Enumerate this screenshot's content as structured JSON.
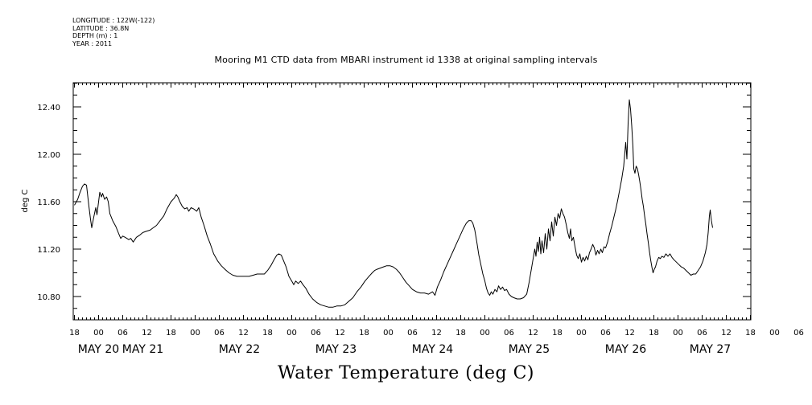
{
  "header": {
    "longitude": "LONGITUDE : 122W(-122)",
    "latitude": "LATITUDE : 36.8N",
    "depth": "DEPTH (m) : 1",
    "year": "YEAR : 2011"
  },
  "chart_data": {
    "type": "line",
    "title": "Mooring M1 CTD data from MBARI instrument id 1338 at original sampling intervals",
    "xlabel": "Water Temperature (deg C)",
    "ylabel": "deg C",
    "x_unit": "hours from MAY 19 18:00",
    "xlim": [
      0,
      168
    ],
    "ylim": [
      10.59,
      12.63
    ],
    "y_ticks": [
      "10.80",
      "11.20",
      "11.60",
      "12.00",
      "12.40"
    ],
    "y_tick_values": [
      10.8,
      11.2,
      11.6,
      12.0,
      12.4
    ],
    "x_hour_ticks": [
      "18",
      "00",
      "06",
      "12",
      "18",
      "00",
      "06",
      "12",
      "18",
      "00",
      "06",
      "12",
      "18",
      "00",
      "06",
      "12",
      "18",
      "00",
      "06",
      "12",
      "18",
      "00",
      "06",
      "12",
      "18",
      "00",
      "06",
      "12",
      "18",
      "00",
      "06",
      "12",
      "18"
    ],
    "x_date_labels": [
      {
        "label": "MAY 20",
        "hour": 6
      },
      {
        "label": "MAY 21",
        "hour": 17
      },
      {
        "label": "MAY 22",
        "hour": 41
      },
      {
        "label": "MAY 23",
        "hour": 65
      },
      {
        "label": "MAY 24",
        "hour": 89
      },
      {
        "label": "MAY 25",
        "hour": 113
      },
      {
        "label": "MAY 26",
        "hour": 137
      },
      {
        "label": "MAY 27",
        "hour": 158
      }
    ],
    "series": [
      {
        "color": "#000000",
        "points": [
          [
            0.0,
            11.57
          ],
          [
            0.8,
            11.62
          ],
          [
            1.4,
            11.68
          ],
          [
            2.0,
            11.73
          ],
          [
            2.5,
            11.75
          ],
          [
            3.0,
            11.74
          ],
          [
            3.6,
            11.56
          ],
          [
            4.0,
            11.45
          ],
          [
            4.3,
            11.38
          ],
          [
            4.8,
            11.47
          ],
          [
            5.3,
            11.55
          ],
          [
            5.6,
            11.49
          ],
          [
            6.0,
            11.6
          ],
          [
            6.3,
            11.68
          ],
          [
            6.7,
            11.64
          ],
          [
            7.0,
            11.67
          ],
          [
            7.5,
            11.62
          ],
          [
            8.0,
            11.64
          ],
          [
            8.4,
            11.6
          ],
          [
            8.8,
            11.5
          ],
          [
            9.5,
            11.44
          ],
          [
            10.3,
            11.39
          ],
          [
            11.0,
            11.33
          ],
          [
            11.5,
            11.29
          ],
          [
            12.0,
            11.31
          ],
          [
            12.6,
            11.3
          ],
          [
            13.5,
            11.28
          ],
          [
            14.0,
            11.29
          ],
          [
            14.6,
            11.26
          ],
          [
            15.4,
            11.3
          ],
          [
            16.3,
            11.32
          ],
          [
            17.0,
            11.34
          ],
          [
            17.8,
            11.35
          ],
          [
            18.8,
            11.36
          ],
          [
            19.6,
            11.38
          ],
          [
            20.4,
            11.4
          ],
          [
            21.3,
            11.44
          ],
          [
            22.2,
            11.48
          ],
          [
            23.0,
            11.54
          ],
          [
            24.0,
            11.6
          ],
          [
            24.8,
            11.63
          ],
          [
            25.3,
            11.66
          ],
          [
            25.7,
            11.64
          ],
          [
            26.2,
            11.6
          ],
          [
            26.8,
            11.56
          ],
          [
            27.4,
            11.54
          ],
          [
            28.0,
            11.55
          ],
          [
            28.4,
            11.52
          ],
          [
            29.0,
            11.55
          ],
          [
            29.6,
            11.54
          ],
          [
            30.4,
            11.52
          ],
          [
            30.9,
            11.55
          ],
          [
            31.5,
            11.47
          ],
          [
            32.2,
            11.4
          ],
          [
            33.0,
            11.31
          ],
          [
            33.8,
            11.24
          ],
          [
            34.6,
            11.16
          ],
          [
            35.6,
            11.1
          ],
          [
            36.5,
            11.06
          ],
          [
            37.4,
            11.03
          ],
          [
            38.4,
            11.0
          ],
          [
            39.4,
            10.98
          ],
          [
            40.4,
            10.97
          ],
          [
            41.4,
            10.97
          ],
          [
            42.4,
            10.97
          ],
          [
            43.4,
            10.97
          ],
          [
            44.4,
            10.98
          ],
          [
            45.4,
            10.99
          ],
          [
            46.4,
            10.99
          ],
          [
            47.2,
            10.99
          ],
          [
            48.0,
            11.02
          ],
          [
            48.8,
            11.06
          ],
          [
            49.6,
            11.11
          ],
          [
            50.3,
            11.15
          ],
          [
            50.8,
            11.16
          ],
          [
            51.4,
            11.15
          ],
          [
            52.0,
            11.1
          ],
          [
            52.6,
            11.05
          ],
          [
            53.3,
            10.97
          ],
          [
            54.0,
            10.93
          ],
          [
            54.5,
            10.9
          ],
          [
            55.0,
            10.93
          ],
          [
            55.6,
            10.91
          ],
          [
            56.2,
            10.93
          ],
          [
            56.8,
            10.9
          ],
          [
            57.5,
            10.87
          ],
          [
            58.3,
            10.82
          ],
          [
            59.2,
            10.78
          ],
          [
            60.2,
            10.75
          ],
          [
            61.2,
            10.73
          ],
          [
            62.2,
            10.72
          ],
          [
            63.2,
            10.71
          ],
          [
            64.2,
            10.71
          ],
          [
            65.2,
            10.72
          ],
          [
            66.2,
            10.72
          ],
          [
            67.2,
            10.73
          ],
          [
            68.2,
            10.76
          ],
          [
            69.2,
            10.79
          ],
          [
            70.2,
            10.84
          ],
          [
            71.2,
            10.88
          ],
          [
            72.2,
            10.93
          ],
          [
            73.2,
            10.97
          ],
          [
            74.0,
            11.0
          ],
          [
            74.6,
            11.02
          ],
          [
            75.2,
            11.03
          ],
          [
            76.0,
            11.04
          ],
          [
            76.8,
            11.05
          ],
          [
            77.6,
            11.06
          ],
          [
            78.4,
            11.06
          ],
          [
            79.2,
            11.05
          ],
          [
            80.0,
            11.03
          ],
          [
            80.8,
            11.0
          ],
          [
            81.6,
            10.96
          ],
          [
            82.4,
            10.92
          ],
          [
            83.2,
            10.89
          ],
          [
            84.0,
            10.86
          ],
          [
            85.0,
            10.84
          ],
          [
            86.0,
            10.83
          ],
          [
            87.0,
            10.83
          ],
          [
            88.0,
            10.82
          ],
          [
            89.0,
            10.84
          ],
          [
            89.6,
            10.81
          ],
          [
            90.2,
            10.88
          ],
          [
            91.0,
            10.94
          ],
          [
            91.8,
            11.01
          ],
          [
            92.6,
            11.07
          ],
          [
            93.4,
            11.13
          ],
          [
            94.2,
            11.19
          ],
          [
            95.0,
            11.25
          ],
          [
            95.8,
            11.31
          ],
          [
            96.6,
            11.37
          ],
          [
            97.4,
            11.42
          ],
          [
            98.0,
            11.44
          ],
          [
            98.6,
            11.44
          ],
          [
            99.0,
            11.42
          ],
          [
            99.5,
            11.36
          ],
          [
            100.0,
            11.26
          ],
          [
            100.5,
            11.15
          ],
          [
            101.0,
            11.07
          ],
          [
            101.5,
            10.99
          ],
          [
            102.0,
            10.93
          ],
          [
            102.4,
            10.87
          ],
          [
            102.8,
            10.83
          ],
          [
            103.2,
            10.81
          ],
          [
            103.6,
            10.84
          ],
          [
            104.0,
            10.82
          ],
          [
            104.5,
            10.86
          ],
          [
            105.0,
            10.84
          ],
          [
            105.4,
            10.89
          ],
          [
            105.9,
            10.86
          ],
          [
            106.4,
            10.88
          ],
          [
            106.9,
            10.85
          ],
          [
            107.4,
            10.86
          ],
          [
            108.0,
            10.82
          ],
          [
            108.6,
            10.8
          ],
          [
            109.2,
            10.79
          ],
          [
            110.0,
            10.78
          ],
          [
            110.8,
            10.78
          ],
          [
            111.6,
            10.79
          ],
          [
            112.4,
            10.82
          ],
          [
            113.0,
            10.92
          ],
          [
            113.5,
            11.02
          ],
          [
            114.0,
            11.12
          ],
          [
            114.4,
            11.2
          ],
          [
            114.7,
            11.14
          ],
          [
            115.0,
            11.26
          ],
          [
            115.3,
            11.18
          ],
          [
            115.6,
            11.3
          ],
          [
            115.9,
            11.16
          ],
          [
            116.2,
            11.27
          ],
          [
            116.6,
            11.17
          ],
          [
            117.0,
            11.33
          ],
          [
            117.4,
            11.2
          ],
          [
            117.8,
            11.37
          ],
          [
            118.2,
            11.27
          ],
          [
            118.6,
            11.43
          ],
          [
            119.0,
            11.31
          ],
          [
            119.4,
            11.47
          ],
          [
            119.8,
            11.4
          ],
          [
            120.2,
            11.5
          ],
          [
            120.6,
            11.46
          ],
          [
            121.0,
            11.54
          ],
          [
            121.4,
            11.5
          ],
          [
            121.8,
            11.47
          ],
          [
            122.2,
            11.41
          ],
          [
            122.6,
            11.34
          ],
          [
            123.0,
            11.29
          ],
          [
            123.3,
            11.37
          ],
          [
            123.6,
            11.27
          ],
          [
            124.0,
            11.3
          ],
          [
            124.4,
            11.22
          ],
          [
            124.8,
            11.15
          ],
          [
            125.2,
            11.12
          ],
          [
            125.6,
            11.16
          ],
          [
            126.0,
            11.09
          ],
          [
            126.4,
            11.13
          ],
          [
            126.8,
            11.1
          ],
          [
            127.2,
            11.14
          ],
          [
            127.6,
            11.11
          ],
          [
            128.0,
            11.17
          ],
          [
            128.4,
            11.2
          ],
          [
            128.8,
            11.24
          ],
          [
            129.2,
            11.21
          ],
          [
            129.6,
            11.15
          ],
          [
            130.0,
            11.19
          ],
          [
            130.4,
            11.16
          ],
          [
            130.8,
            11.2
          ],
          [
            131.2,
            11.17
          ],
          [
            131.6,
            11.22
          ],
          [
            132.0,
            11.21
          ],
          [
            132.5,
            11.26
          ],
          [
            133.0,
            11.33
          ],
          [
            133.5,
            11.39
          ],
          [
            134.0,
            11.46
          ],
          [
            134.5,
            11.53
          ],
          [
            135.0,
            11.61
          ],
          [
            135.5,
            11.7
          ],
          [
            136.0,
            11.79
          ],
          [
            136.5,
            11.9
          ],
          [
            137.0,
            12.1
          ],
          [
            137.3,
            11.96
          ],
          [
            137.6,
            12.26
          ],
          [
            137.9,
            12.46
          ],
          [
            138.2,
            12.38
          ],
          [
            138.5,
            12.24
          ],
          [
            138.8,
            12.06
          ],
          [
            139.0,
            11.88
          ],
          [
            139.3,
            11.84
          ],
          [
            139.6,
            11.9
          ],
          [
            139.9,
            11.88
          ],
          [
            140.2,
            11.83
          ],
          [
            140.5,
            11.77
          ],
          [
            140.8,
            11.7
          ],
          [
            141.1,
            11.62
          ],
          [
            141.4,
            11.56
          ],
          [
            141.7,
            11.48
          ],
          [
            142.0,
            11.41
          ],
          [
            142.3,
            11.33
          ],
          [
            142.6,
            11.26
          ],
          [
            142.9,
            11.18
          ],
          [
            143.2,
            11.11
          ],
          [
            143.5,
            11.05
          ],
          [
            143.8,
            11.0
          ],
          [
            144.1,
            11.03
          ],
          [
            144.4,
            11.05
          ],
          [
            144.8,
            11.1
          ],
          [
            145.2,
            11.13
          ],
          [
            145.6,
            11.12
          ],
          [
            146.0,
            11.14
          ],
          [
            146.5,
            11.13
          ],
          [
            147.0,
            11.16
          ],
          [
            147.5,
            11.14
          ],
          [
            148.0,
            11.16
          ],
          [
            148.5,
            11.13
          ],
          [
            149.0,
            11.11
          ],
          [
            149.6,
            11.09
          ],
          [
            150.2,
            11.07
          ],
          [
            150.8,
            11.05
          ],
          [
            151.4,
            11.04
          ],
          [
            152.0,
            11.02
          ],
          [
            152.6,
            11.0
          ],
          [
            153.2,
            10.98
          ],
          [
            153.8,
            10.99
          ],
          [
            154.4,
            10.99
          ],
          [
            155.0,
            11.02
          ],
          [
            155.6,
            11.05
          ],
          [
            156.2,
            11.1
          ],
          [
            156.8,
            11.17
          ],
          [
            157.2,
            11.24
          ],
          [
            157.5,
            11.34
          ],
          [
            157.8,
            11.48
          ],
          [
            158.0,
            11.53
          ],
          [
            158.3,
            11.44
          ],
          [
            158.6,
            11.38
          ]
        ]
      }
    ]
  }
}
